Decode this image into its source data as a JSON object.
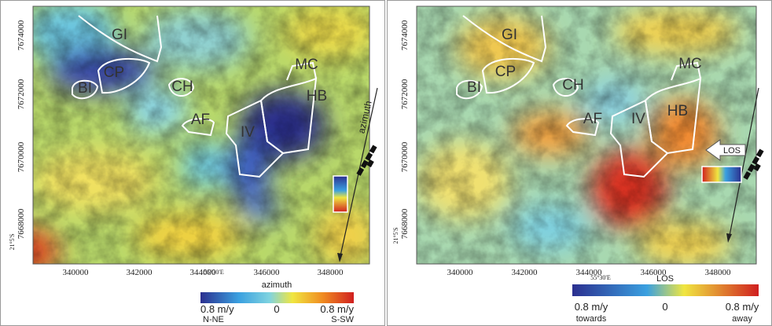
{
  "panels": [
    {
      "xticks": [
        "340000",
        "342000",
        "344000",
        "346000",
        "348000"
      ],
      "yticks": [
        "7674000",
        "7672000",
        "7670000",
        "7668000"
      ],
      "lon_label": "55°30'E",
      "lat_label": "21°5'S",
      "regions": [
        "GI",
        "CP",
        "BI",
        "CH",
        "MC",
        "HB",
        "AF",
        "IV"
      ],
      "direction_label": "azimuth",
      "colorbar": {
        "title": "azimuth",
        "min_label": "0.8 m/y",
        "mid_label": "0",
        "max_label": "0.8 m/y",
        "left_note": "N-NE",
        "right_note": "S-SW"
      }
    },
    {
      "xticks": [
        "340000",
        "342000",
        "344000",
        "346000",
        "348000"
      ],
      "yticks": [
        "7674000",
        "7672000",
        "7670000",
        "7668000"
      ],
      "lon_label": "55°30'E",
      "lat_label": "21°5'S",
      "regions": [
        "GI",
        "CP",
        "BI",
        "CH",
        "MC",
        "HB",
        "AF",
        "IV"
      ],
      "direction_label": "LOS",
      "colorbar": {
        "title": "LOS",
        "min_label": "0.8 m/y",
        "mid_label": "0",
        "max_label": "0.8 m/y",
        "left_note": "towards",
        "right_note": "away"
      }
    }
  ]
}
